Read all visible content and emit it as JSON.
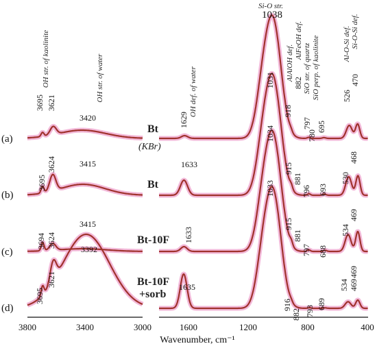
{
  "chart_data": {
    "type": "line",
    "xlabel": "Wavenumber, cm⁻¹",
    "x_breaks": [
      [
        3800,
        3000
      ],
      [
        1800,
        400
      ]
    ],
    "x_ticks_left": [
      "3800",
      "3400",
      "3000"
    ],
    "x_ticks_right": [
      "1600",
      "1200",
      "800",
      "400"
    ],
    "line_color": "#a0322d",
    "glow_color": "#f2b8d8",
    "band_assignments": [
      {
        "text": "OH str. of kaolinite",
        "x": 3680
      },
      {
        "text": "OH str. of water",
        "x": 3400
      },
      {
        "text": "OH def. of water",
        "x": 1629
      },
      {
        "text": "Si-O str.",
        "x": 1038
      },
      {
        "text": "AlAlOH def.",
        "x": 918
      },
      {
        "text": "AlFeOH def.",
        "x": 882
      },
      {
        "text": "SiO str. of quartz",
        "x": 797
      },
      {
        "text": "SiO perp. of kaolinite",
        "x": 695
      },
      {
        "text": "Al-O-Si def.",
        "x": 526
      },
      {
        "text": "Si-O-Si def.",
        "x": 470
      }
    ],
    "series": [
      {
        "name": "Bt",
        "row_label": "(a)",
        "note": "(KBr)",
        "peaks": [
          {
            "x": 3695,
            "label": "3695"
          },
          {
            "x": 3621,
            "label": "3621"
          },
          {
            "x": 3420,
            "label": "3420"
          },
          {
            "x": 1629,
            "label": "1629"
          },
          {
            "x": 1038,
            "label": "1038"
          },
          {
            "x": 1031,
            "label": "1031"
          },
          {
            "x": 918,
            "label": "918"
          },
          {
            "x": 882,
            "label": "882"
          },
          {
            "x": 797,
            "label": "797"
          },
          {
            "x": 780,
            "label": "780"
          },
          {
            "x": 695,
            "label": "695"
          },
          {
            "x": 526,
            "label": "526"
          },
          {
            "x": 470,
            "label": "470"
          }
        ]
      },
      {
        "name": "Bt",
        "row_label": "(b)",
        "peaks": [
          {
            "x": 3695,
            "label": "3695"
          },
          {
            "x": 3624,
            "label": "3624"
          },
          {
            "x": 3415,
            "label": "3415"
          },
          {
            "x": 1633,
            "label": "1633"
          },
          {
            "x": 1034,
            "label": "1034"
          },
          {
            "x": 915,
            "label": "915"
          },
          {
            "x": 881,
            "label": "881"
          },
          {
            "x": 796,
            "label": "796"
          },
          {
            "x": 693,
            "label": "693"
          },
          {
            "x": 530,
            "label": "530"
          },
          {
            "x": 468,
            "label": "468"
          },
          {
            "x": 469,
            "label": "469"
          }
        ]
      },
      {
        "name": "Bt-10F",
        "row_label": "(c)",
        "peaks": [
          {
            "x": 3694,
            "label": "3694"
          },
          {
            "x": 3624,
            "label": "3624"
          },
          {
            "x": 3415,
            "label": "3415"
          },
          {
            "x": 1633,
            "label": "1633"
          },
          {
            "x": 1033,
            "label": "1033"
          },
          {
            "x": 915,
            "label": "915"
          },
          {
            "x": 881,
            "label": "881"
          },
          {
            "x": 797,
            "label": "797"
          },
          {
            "x": 688,
            "label": "688"
          },
          {
            "x": 534,
            "label": "534"
          },
          {
            "x": 469,
            "label": "469"
          }
        ]
      },
      {
        "name": "Bt-10F",
        "name2": "+sorb",
        "row_label": "(d)",
        "peaks": [
          {
            "x": 3695,
            "label": "3695"
          },
          {
            "x": 3621,
            "label": "3621"
          },
          {
            "x": 3392,
            "label": "3392"
          },
          {
            "x": 1635,
            "label": "1635"
          },
          {
            "x": 916,
            "label": "916"
          },
          {
            "x": 882,
            "label": "882"
          },
          {
            "x": 793,
            "label": "793"
          },
          {
            "x": 689,
            "label": "689"
          },
          {
            "x": 534,
            "label": "534"
          },
          {
            "x": 469,
            "label": "469"
          }
        ]
      }
    ]
  }
}
